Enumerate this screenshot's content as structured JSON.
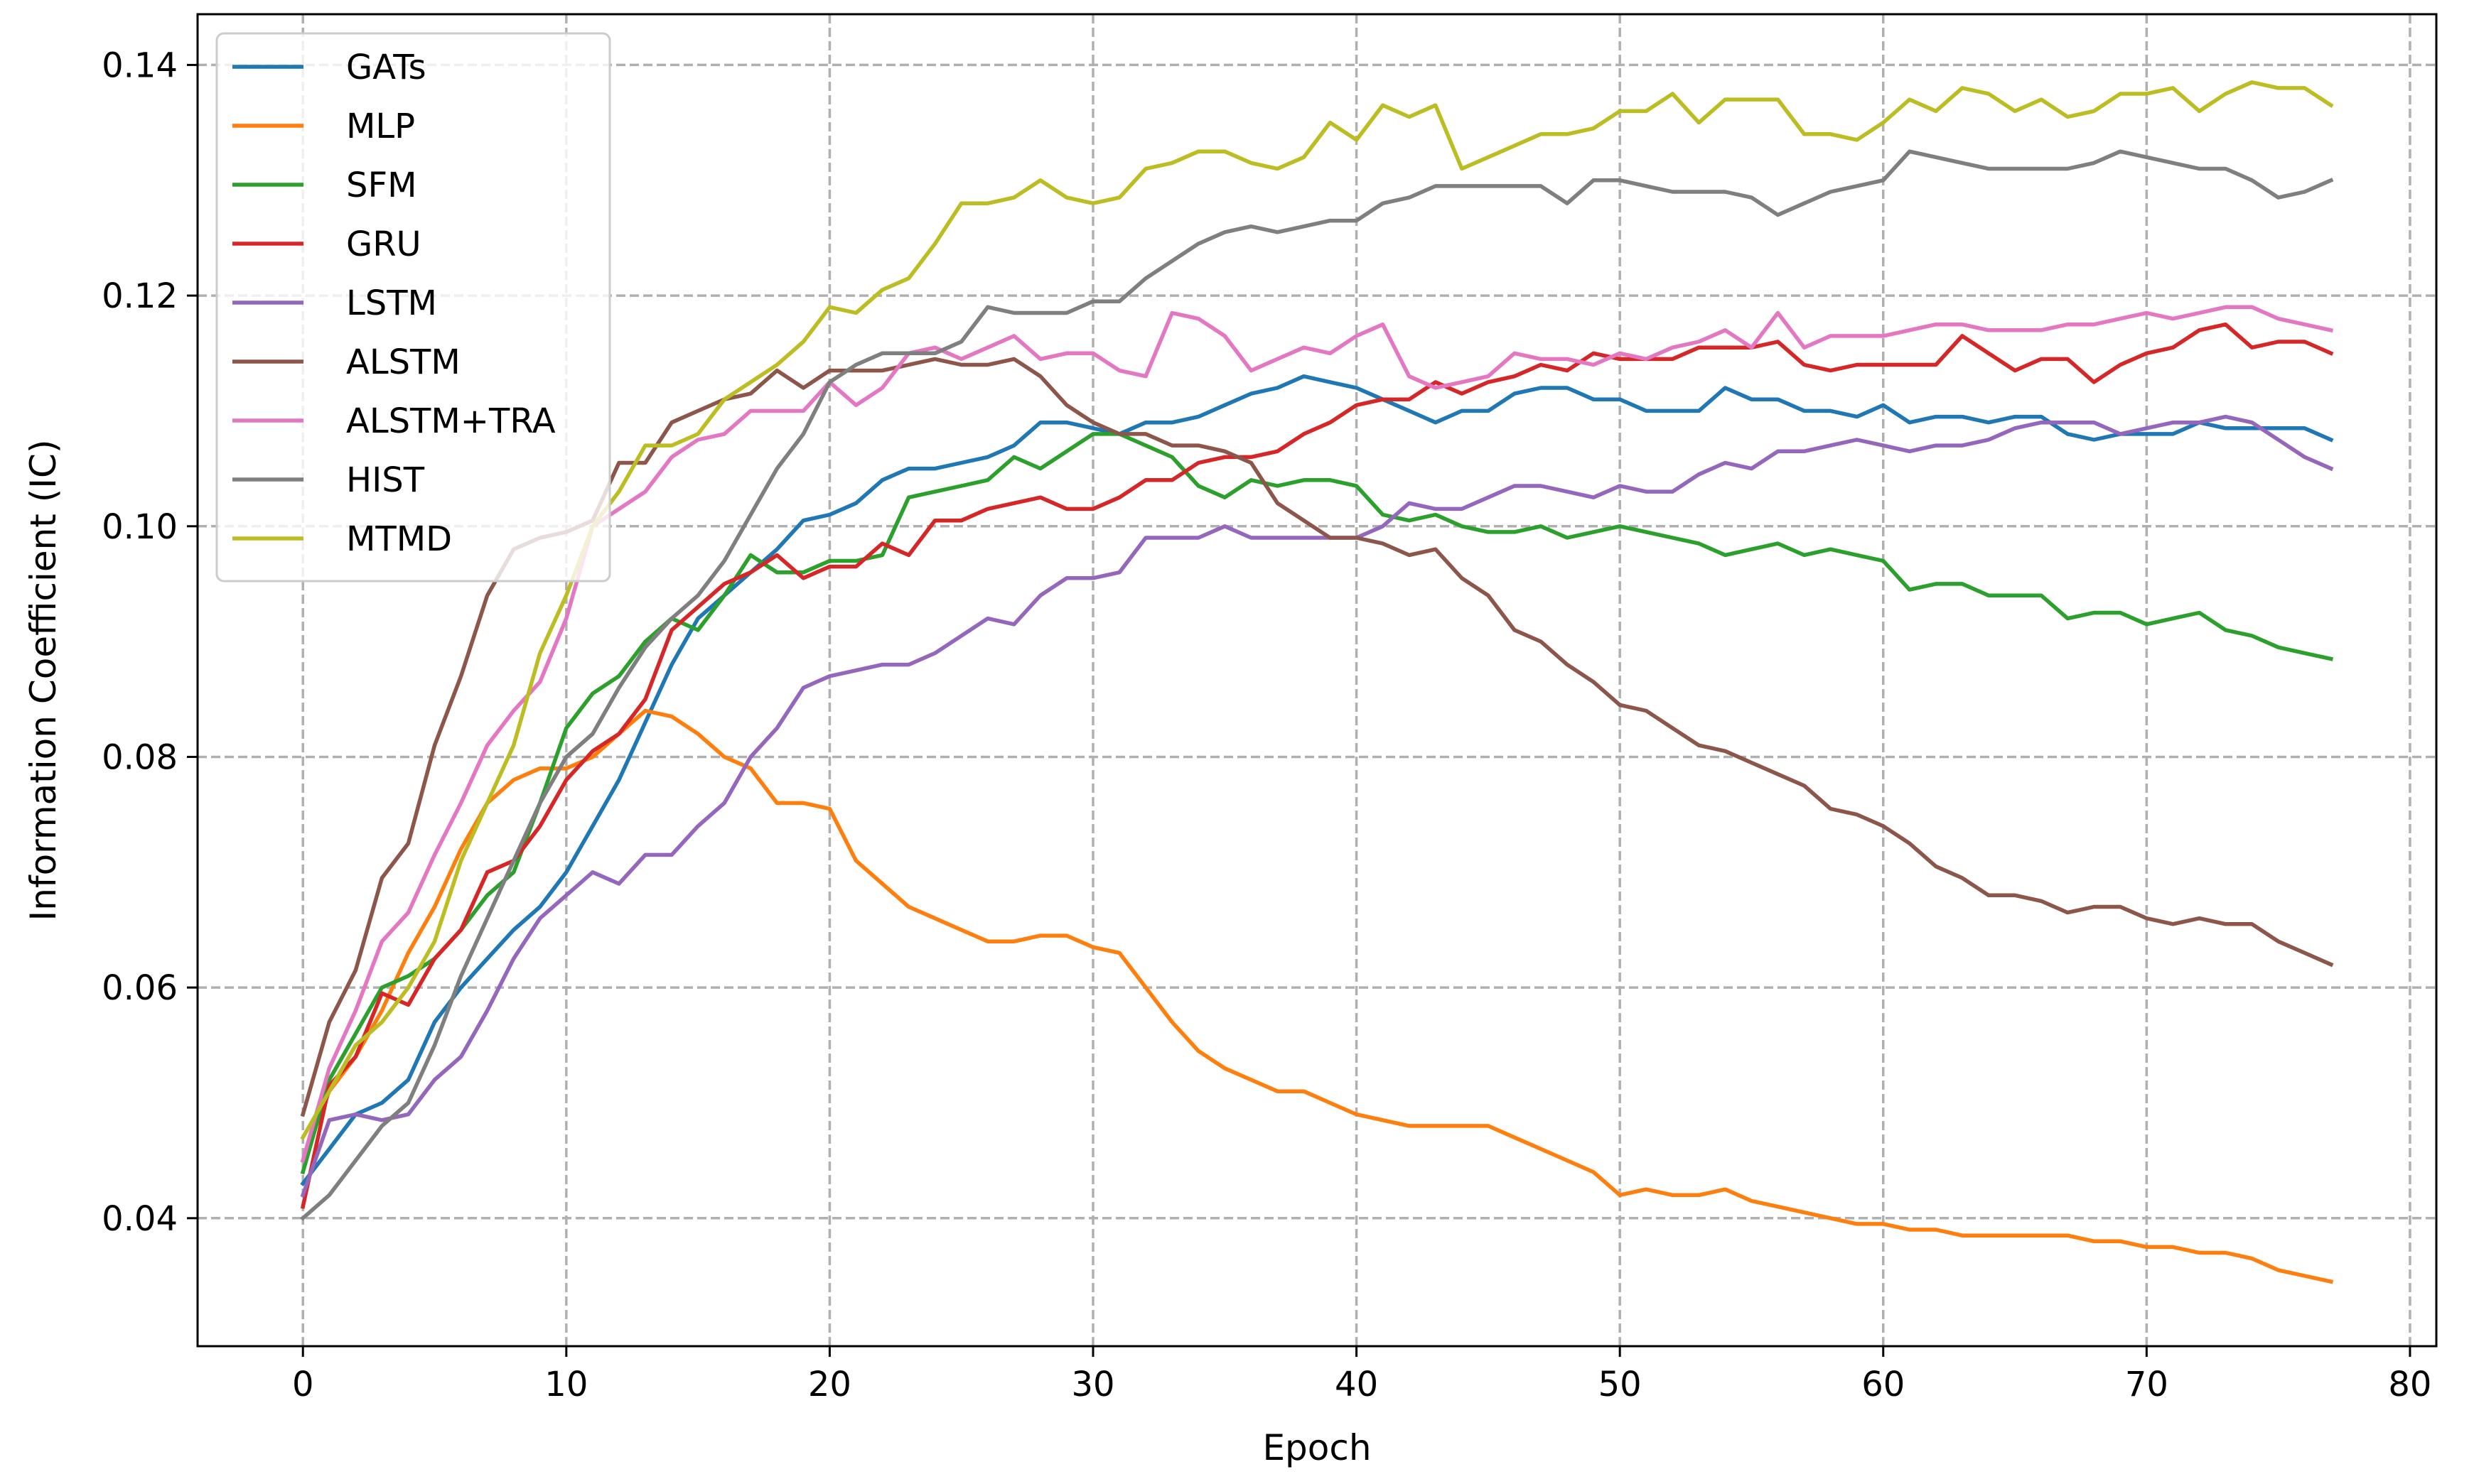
{
  "chart_data": {
    "type": "line",
    "title": "",
    "xlabel": "Epoch",
    "ylabel": "Information Coefficient (IC)",
    "xlim": [
      -4,
      81
    ],
    "ylim": [
      0.0289,
      0.1444
    ],
    "xticks": [
      0,
      10,
      20,
      30,
      40,
      50,
      60,
      70,
      80
    ],
    "yticks": [
      0.04,
      0.06,
      0.08,
      0.1,
      0.12,
      0.14
    ],
    "xtick_labels": [
      "0",
      "10",
      "20",
      "30",
      "40",
      "50",
      "60",
      "70",
      "80"
    ],
    "ytick_labels": [
      "0.04",
      "0.06",
      "0.08",
      "0.10",
      "0.12",
      "0.14"
    ],
    "grid": true,
    "legend_position": "top-left",
    "x_start": 0,
    "series": [
      {
        "name": "GATs",
        "color": "#1f77b4",
        "values": [
          0.043,
          0.046,
          0.049,
          0.05,
          0.052,
          0.057,
          0.06,
          0.0625,
          0.065,
          0.067,
          0.07,
          0.074,
          0.078,
          0.083,
          0.088,
          0.092,
          0.094,
          0.096,
          0.098,
          0.1005,
          0.101,
          0.102,
          0.104,
          0.105,
          0.105,
          0.1055,
          0.106,
          0.107,
          0.109,
          0.109,
          0.1085,
          0.108,
          0.109,
          0.109,
          0.1095,
          0.1105,
          0.1115,
          0.112,
          0.113,
          0.1125,
          0.112,
          0.111,
          0.11,
          0.109,
          0.11,
          0.11,
          0.1115,
          0.112,
          0.112,
          0.111,
          0.111,
          0.11,
          0.11,
          0.11,
          0.112,
          0.111,
          0.111,
          0.11,
          0.11,
          0.1095,
          0.1105,
          0.109,
          0.1095,
          0.1095,
          0.109,
          0.1095,
          0.1095,
          0.108,
          0.1075,
          0.108,
          0.108,
          0.108,
          0.109,
          0.1085,
          0.1085,
          0.1085,
          0.1085,
          0.1075
        ]
      },
      {
        "name": "MLP",
        "color": "#ff7f0e",
        "values": [
          0.045,
          0.051,
          0.054,
          0.058,
          0.063,
          0.067,
          0.072,
          0.076,
          0.078,
          0.079,
          0.079,
          0.08,
          0.082,
          0.084,
          0.0835,
          0.082,
          0.08,
          0.079,
          0.076,
          0.076,
          0.0755,
          0.071,
          0.069,
          0.067,
          0.066,
          0.065,
          0.064,
          0.064,
          0.0645,
          0.0645,
          0.0635,
          0.063,
          0.06,
          0.057,
          0.0545,
          0.053,
          0.052,
          0.051,
          0.051,
          0.05,
          0.049,
          0.0485,
          0.048,
          0.048,
          0.048,
          0.048,
          0.047,
          0.046,
          0.045,
          0.044,
          0.042,
          0.0425,
          0.042,
          0.042,
          0.0425,
          0.0415,
          0.041,
          0.0405,
          0.04,
          0.0395,
          0.0395,
          0.039,
          0.039,
          0.0385,
          0.0385,
          0.0385,
          0.0385,
          0.0385,
          0.038,
          0.038,
          0.0375,
          0.0375,
          0.037,
          0.037,
          0.0365,
          0.0355,
          0.035,
          0.0345
        ]
      },
      {
        "name": "SFM",
        "color": "#2ca02c",
        "values": [
          0.044,
          0.052,
          0.056,
          0.06,
          0.061,
          0.0625,
          0.065,
          0.068,
          0.07,
          0.076,
          0.0825,
          0.0855,
          0.087,
          0.09,
          0.092,
          0.091,
          0.094,
          0.0975,
          0.096,
          0.096,
          0.097,
          0.097,
          0.0975,
          0.1025,
          0.103,
          0.1035,
          0.104,
          0.106,
          0.105,
          0.1065,
          0.108,
          0.108,
          0.107,
          0.106,
          0.1035,
          0.1025,
          0.104,
          0.1035,
          0.104,
          0.104,
          0.1035,
          0.101,
          0.1005,
          0.101,
          0.1,
          0.0995,
          0.0995,
          0.1,
          0.099,
          0.0995,
          0.1,
          0.0995,
          0.099,
          0.0985,
          0.0975,
          0.098,
          0.0985,
          0.0975,
          0.098,
          0.0975,
          0.097,
          0.0945,
          0.095,
          0.095,
          0.094,
          0.094,
          0.094,
          0.092,
          0.0925,
          0.0925,
          0.0915,
          0.092,
          0.0925,
          0.091,
          0.0905,
          0.0895,
          0.089,
          0.0885
        ]
      },
      {
        "name": "GRU",
        "color": "#d62728",
        "values": [
          0.041,
          0.0515,
          0.054,
          0.0595,
          0.0585,
          0.0625,
          0.065,
          0.07,
          0.071,
          0.074,
          0.078,
          0.0805,
          0.082,
          0.085,
          0.091,
          0.093,
          0.095,
          0.096,
          0.0975,
          0.0955,
          0.0965,
          0.0965,
          0.0985,
          0.0975,
          0.1005,
          0.1005,
          0.1015,
          0.102,
          0.1025,
          0.1015,
          0.1015,
          0.1025,
          0.104,
          0.104,
          0.1055,
          0.106,
          0.106,
          0.1065,
          0.108,
          0.109,
          0.1105,
          0.111,
          0.111,
          0.1125,
          0.1115,
          0.1125,
          0.113,
          0.114,
          0.1135,
          0.115,
          0.1145,
          0.1145,
          0.1145,
          0.1155,
          0.1155,
          0.1155,
          0.116,
          0.114,
          0.1135,
          0.114,
          0.114,
          0.114,
          0.114,
          0.1165,
          0.115,
          0.1135,
          0.1145,
          0.1145,
          0.1125,
          0.114,
          0.115,
          0.1155,
          0.117,
          0.1175,
          0.1155,
          0.116,
          0.116,
          0.115
        ]
      },
      {
        "name": "LSTM",
        "color": "#9467bd",
        "values": [
          0.042,
          0.0485,
          0.049,
          0.0485,
          0.049,
          0.052,
          0.054,
          0.058,
          0.0625,
          0.066,
          0.068,
          0.07,
          0.069,
          0.0715,
          0.0715,
          0.074,
          0.076,
          0.08,
          0.0825,
          0.086,
          0.087,
          0.0875,
          0.088,
          0.088,
          0.089,
          0.0905,
          0.092,
          0.0915,
          0.094,
          0.0955,
          0.0955,
          0.096,
          0.099,
          0.099,
          0.099,
          0.1,
          0.099,
          0.099,
          0.099,
          0.099,
          0.099,
          0.1,
          0.102,
          0.1015,
          0.1015,
          0.1025,
          0.1035,
          0.1035,
          0.103,
          0.1025,
          0.1035,
          0.103,
          0.103,
          0.1045,
          0.1055,
          0.105,
          0.1065,
          0.1065,
          0.107,
          0.1075,
          0.107,
          0.1065,
          0.107,
          0.107,
          0.1075,
          0.1085,
          0.109,
          0.109,
          0.109,
          0.108,
          0.1085,
          0.109,
          0.109,
          0.1095,
          0.109,
          0.1075,
          0.106,
          0.105
        ]
      },
      {
        "name": "ALSTM",
        "color": "#8c564b",
        "values": [
          0.049,
          0.057,
          0.0615,
          0.0695,
          0.0725,
          0.081,
          0.087,
          0.094,
          0.098,
          0.099,
          0.0995,
          0.1005,
          0.1055,
          0.1055,
          0.109,
          0.11,
          0.111,
          0.1115,
          0.1135,
          0.112,
          0.1135,
          0.1135,
          0.1135,
          0.114,
          0.1145,
          0.114,
          0.114,
          0.1145,
          0.113,
          0.1105,
          0.109,
          0.108,
          0.108,
          0.107,
          0.107,
          0.1065,
          0.1055,
          0.102,
          0.1005,
          0.099,
          0.099,
          0.0985,
          0.0975,
          0.098,
          0.0955,
          0.094,
          0.091,
          0.09,
          0.088,
          0.0865,
          0.0845,
          0.084,
          0.0825,
          0.081,
          0.0805,
          0.0795,
          0.0785,
          0.0775,
          0.0755,
          0.075,
          0.074,
          0.0725,
          0.0705,
          0.0695,
          0.068,
          0.068,
          0.0675,
          0.0665,
          0.067,
          0.067,
          0.066,
          0.0655,
          0.066,
          0.0655,
          0.0655,
          0.064,
          0.063,
          0.062
        ]
      },
      {
        "name": "ALSTM+TRA",
        "color": "#e377c2",
        "values": [
          0.045,
          0.053,
          0.058,
          0.064,
          0.0665,
          0.0715,
          0.076,
          0.081,
          0.084,
          0.0865,
          0.092,
          0.1,
          0.1015,
          0.103,
          0.106,
          0.1075,
          0.108,
          0.11,
          0.11,
          0.11,
          0.1125,
          0.1105,
          0.112,
          0.115,
          0.1155,
          0.1145,
          0.1155,
          0.1165,
          0.1145,
          0.115,
          0.115,
          0.1135,
          0.113,
          0.1185,
          0.118,
          0.1165,
          0.1135,
          0.1145,
          0.1155,
          0.115,
          0.1165,
          0.1175,
          0.113,
          0.112,
          0.1125,
          0.113,
          0.115,
          0.1145,
          0.1145,
          0.114,
          0.115,
          0.1145,
          0.1155,
          0.116,
          0.117,
          0.1155,
          0.1185,
          0.1155,
          0.1165,
          0.1165,
          0.1165,
          0.117,
          0.1175,
          0.1175,
          0.117,
          0.117,
          0.117,
          0.1175,
          0.1175,
          0.118,
          0.1185,
          0.118,
          0.1185,
          0.119,
          0.119,
          0.118,
          0.1175,
          0.117
        ]
      },
      {
        "name": "HIST",
        "color": "#7f7f7f",
        "values": [
          0.04,
          0.042,
          0.045,
          0.048,
          0.05,
          0.055,
          0.061,
          0.066,
          0.071,
          0.076,
          0.08,
          0.082,
          0.086,
          0.0895,
          0.092,
          0.094,
          0.097,
          0.101,
          0.105,
          0.108,
          0.1125,
          0.114,
          0.115,
          0.115,
          0.115,
          0.116,
          0.119,
          0.1185,
          0.1185,
          0.1185,
          0.1195,
          0.1195,
          0.1215,
          0.123,
          0.1245,
          0.1255,
          0.126,
          0.1255,
          0.126,
          0.1265,
          0.1265,
          0.128,
          0.1285,
          0.1295,
          0.1295,
          0.1295,
          0.1295,
          0.1295,
          0.128,
          0.13,
          0.13,
          0.1295,
          0.129,
          0.129,
          0.129,
          0.1285,
          0.127,
          0.128,
          0.129,
          0.1295,
          0.13,
          0.1325,
          0.132,
          0.1315,
          0.131,
          0.131,
          0.131,
          0.131,
          0.1315,
          0.1325,
          0.132,
          0.1315,
          0.131,
          0.131,
          0.13,
          0.1285,
          0.129,
          0.13
        ]
      },
      {
        "name": "MTMD",
        "color": "#bcbd22",
        "values": [
          0.047,
          0.051,
          0.055,
          0.057,
          0.06,
          0.064,
          0.071,
          0.076,
          0.081,
          0.089,
          0.094,
          0.1,
          0.103,
          0.107,
          0.107,
          0.108,
          0.111,
          0.1125,
          0.114,
          0.116,
          0.119,
          0.1185,
          0.1205,
          0.1215,
          0.1245,
          0.128,
          0.128,
          0.1285,
          0.13,
          0.1285,
          0.128,
          0.1285,
          0.131,
          0.1315,
          0.1325,
          0.1325,
          0.1315,
          0.131,
          0.132,
          0.135,
          0.1335,
          0.1365,
          0.1355,
          0.1365,
          0.131,
          0.132,
          0.133,
          0.134,
          0.134,
          0.1345,
          0.136,
          0.136,
          0.1375,
          0.135,
          0.137,
          0.137,
          0.137,
          0.134,
          0.134,
          0.1335,
          0.135,
          0.137,
          0.136,
          0.138,
          0.1375,
          0.136,
          0.137,
          0.1355,
          0.136,
          0.1375,
          0.1375,
          0.138,
          0.136,
          0.1375,
          0.1385,
          0.138,
          0.138,
          0.1365
        ]
      }
    ]
  }
}
